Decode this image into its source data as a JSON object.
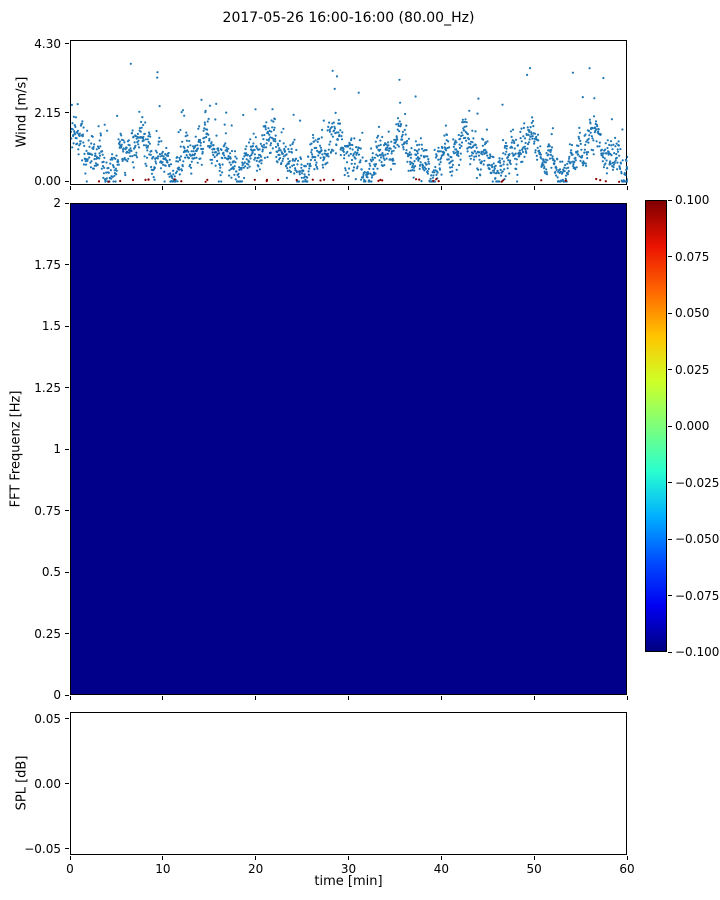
{
  "title": "2017-05-26 16:00-16:00 (80.00_Hz)",
  "xlabel": "time [min]",
  "colors": {
    "axis": "#000000",
    "background": "#ffffff",
    "wind_marker": "#1f77b4",
    "wind_marker_secondary": "#8b0000",
    "heatmap_fill": "#00008b"
  },
  "chart_data": [
    {
      "id": "wind",
      "type": "scatter",
      "title": "2017-05-26 16:00-16:00 (80.00_Hz)",
      "ylabel": "Wind [m/s]",
      "xlim": [
        0,
        60
      ],
      "ylim": [
        -0.12,
        4.42
      ],
      "yticks": [
        {
          "label": "4.30",
          "value": 4.3
        },
        {
          "label": "2.15",
          "value": 2.15
        },
        {
          "label": "0.00",
          "value": 0.0
        }
      ],
      "marker_color": "#1f77b4",
      "secondary_marker_color": "#8b0000",
      "description": "Dense noisy wind-speed scatter, ~1 point per 2 s, values mostly 0.2-2.5 m/s with intermittent gusts up to ~4.1; sparse dark-red points hugging 0.",
      "generator": {
        "seed": 42,
        "n_points": 1900,
        "n_secondary": 36,
        "y_min": 0.02,
        "y_max": 4.3,
        "base": 0.85,
        "noise": 0.55
      }
    },
    {
      "id": "spectrogram",
      "type": "heatmap",
      "ylabel": "FFT Frequenz [Hz]",
      "xlim": [
        0,
        60
      ],
      "ylim": [
        0,
        2
      ],
      "yticks": [
        {
          "label": "2",
          "value": 2.0
        },
        {
          "label": "1.75",
          "value": 1.75
        },
        {
          "label": "1.5",
          "value": 1.5
        },
        {
          "label": "1.25",
          "value": 1.25
        },
        {
          "label": "1",
          "value": 1.0
        },
        {
          "label": "0.75",
          "value": 0.75
        },
        {
          "label": "0.5",
          "value": 0.5
        },
        {
          "label": "0.25",
          "value": 0.25
        },
        {
          "label": "0",
          "value": 0.0
        }
      ],
      "uniform_value": -0.1,
      "fill": "#00008b",
      "colorbar": {
        "colormap": "jet",
        "vmin": -0.1,
        "vmax": 0.1,
        "ticks": [
          {
            "label": "0.100",
            "value": 0.1
          },
          {
            "label": "0.075",
            "value": 0.075
          },
          {
            "label": "0.050",
            "value": 0.05
          },
          {
            "label": "0.025",
            "value": 0.025
          },
          {
            "label": "0.000",
            "value": 0.0
          },
          {
            "label": "−0.025",
            "value": -0.025
          },
          {
            "label": "−0.050",
            "value": -0.05
          },
          {
            "label": "−0.075",
            "value": -0.075
          },
          {
            "label": "−0.100",
            "value": -0.1
          }
        ],
        "jet_stops_top_to_bottom": [
          "rgb(128,0,0) 0%",
          "rgb(235,18,0) 10%",
          "rgb(255,102,0) 20%",
          "rgb(255,196,0) 30%",
          "rgb(207,255,38) 40%",
          "rgb(125,255,122) 50%",
          "rgb(41,255,207) 60%",
          "rgb(0,176,255) 70%",
          "rgb(0,77,255) 80%",
          "rgb(0,0,242) 90%",
          "rgb(0,0,128) 100%"
        ]
      }
    },
    {
      "id": "spl",
      "type": "line",
      "ylabel": "SPL [dB]",
      "xlabel": "time [min]",
      "xlim": [
        0,
        60
      ],
      "ylim": [
        -0.055,
        0.055
      ],
      "yticks": [
        {
          "label": "0.05",
          "value": 0.05
        },
        {
          "label": "0.00",
          "value": 0.0
        },
        {
          "label": "−0.05",
          "value": -0.05
        }
      ],
      "xticks": [
        {
          "label": "0",
          "value": 0
        },
        {
          "label": "10",
          "value": 10
        },
        {
          "label": "20",
          "value": 20
        },
        {
          "label": "30",
          "value": 30
        },
        {
          "label": "40",
          "value": 40
        },
        {
          "label": "50",
          "value": 50
        },
        {
          "label": "60",
          "value": 60
        }
      ],
      "values": []
    }
  ]
}
